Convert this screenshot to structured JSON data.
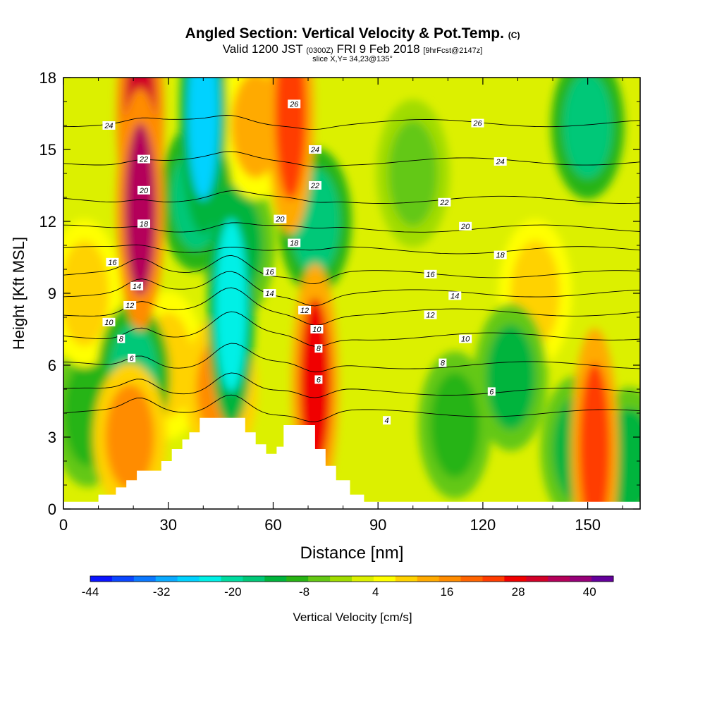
{
  "header": {
    "title": "Angled Section: Vertical Velocity & Pot.Temp.",
    "title_mark": "(C)",
    "valid_prefix": "Valid 1200 JST",
    "valid_utc": "(0300Z)",
    "valid_date": "FRI 9 Feb 2018",
    "forecast": "[9hrFcst@2147z]",
    "slice": "slice X,Y= 34,23@135°"
  },
  "chart_data": {
    "type": "heatmap",
    "subtype": "cross-section contour (filled vertical velocity, line potential temperature)",
    "xlabel": "Distance [nm]",
    "ylabel": "Height [Kft MSL]",
    "xlim": [
      0,
      165
    ],
    "ylim": [
      0,
      18
    ],
    "x_ticks": [
      0,
      30,
      60,
      90,
      120,
      150
    ],
    "y_ticks": [
      0,
      3,
      6,
      9,
      12,
      15,
      18
    ],
    "colorbar": {
      "label": "Vertical Velocity [cm/s]",
      "tick_labels": [
        "-44",
        "-32",
        "-20",
        "-8",
        "4",
        "16",
        "28",
        "40"
      ],
      "tick_values": [
        -44,
        -32,
        -20,
        -8,
        4,
        16,
        28,
        40
      ],
      "range": [
        -44,
        44
      ],
      "colors": [
        "#0a14ff",
        "#0a46ff",
        "#0a78ff",
        "#0aaaff",
        "#00d2ff",
        "#00f0e6",
        "#00dca0",
        "#00c878",
        "#00b43c",
        "#28b414",
        "#64c814",
        "#a0dc00",
        "#dcf000",
        "#ffff00",
        "#ffd200",
        "#ffaa00",
        "#ff8c00",
        "#ff6400",
        "#ff3c00",
        "#f00000",
        "#d20028",
        "#b4005a",
        "#960078",
        "#64009b"
      ]
    },
    "velocity_features": [
      {
        "x": 22,
        "y": 12.5,
        "value": 36
      },
      {
        "x": 22,
        "y": 16.5,
        "value": 30
      },
      {
        "x": 40,
        "y": 16.5,
        "value": -28
      },
      {
        "x": 38,
        "y": 13,
        "value": -18
      },
      {
        "x": 48,
        "y": 8.5,
        "value": -24
      },
      {
        "x": 50,
        "y": 11,
        "value": -12
      },
      {
        "x": 55,
        "y": 16,
        "value": 14
      },
      {
        "x": 65,
        "y": 16.5,
        "value": 24
      },
      {
        "x": 72,
        "y": 12,
        "value": -16
      },
      {
        "x": 72,
        "y": 5.2,
        "value": 26
      },
      {
        "x": 20,
        "y": 5.5,
        "value": -18
      },
      {
        "x": 19,
        "y": 3,
        "value": 18
      },
      {
        "x": 45,
        "y": 5,
        "value": 16
      },
      {
        "x": 150,
        "y": 16,
        "value": -16
      },
      {
        "x": 152,
        "y": 2.5,
        "value": 22
      },
      {
        "x": 147,
        "y": 2.5,
        "value": -14
      },
      {
        "x": 162,
        "y": 2,
        "value": -14
      },
      {
        "x": 128,
        "y": 5.5,
        "value": -12
      },
      {
        "x": 112,
        "y": 3.5,
        "value": -10
      },
      {
        "x": 135,
        "y": 9,
        "value": 9
      },
      {
        "x": 6,
        "y": 9,
        "value": 10
      },
      {
        "x": 7,
        "y": 4,
        "value": -8
      },
      {
        "x": 30,
        "y": 6,
        "value": 8
      },
      {
        "x": 100,
        "y": 14,
        "value": -6
      }
    ],
    "theta_contours": [
      {
        "value": 4,
        "label": "4",
        "x": 90,
        "y": 4.0
      },
      {
        "value": 6,
        "label": "6",
        "x": 120,
        "y": 4.9
      },
      {
        "value": 8,
        "label": "8",
        "x": 120,
        "y": 6.0
      },
      {
        "value": 10,
        "label": "10",
        "x": 120,
        "y": 7.2
      },
      {
        "value": 12,
        "label": "12",
        "x": 120,
        "y": 8.2
      },
      {
        "value": 14,
        "label": "14",
        "x": 120,
        "y": 9.0
      },
      {
        "value": 16,
        "label": "16",
        "x": 120,
        "y": 9.8
      },
      {
        "value": 18,
        "label": "18",
        "x": 120,
        "y": 10.8
      },
      {
        "value": 20,
        "label": "20",
        "x": 120,
        "y": 11.7
      },
      {
        "value": 22,
        "label": "22",
        "x": 120,
        "y": 12.9
      },
      {
        "value": 24,
        "label": "24",
        "x": 120,
        "y": 14.5
      },
      {
        "value": 26,
        "label": "26",
        "x": 120,
        "y": 16.1
      }
    ],
    "contour_label_marks": [
      {
        "text": "24",
        "x": 13,
        "y": 16.0
      },
      {
        "text": "22",
        "x": 23,
        "y": 14.6
      },
      {
        "text": "20",
        "x": 23,
        "y": 13.3
      },
      {
        "text": "18",
        "x": 23,
        "y": 11.9
      },
      {
        "text": "16",
        "x": 14,
        "y": 10.3
      },
      {
        "text": "14",
        "x": 21,
        "y": 9.3
      },
      {
        "text": "12",
        "x": 19,
        "y": 8.5
      },
      {
        "text": "10",
        "x": 13,
        "y": 7.8
      },
      {
        "text": "8",
        "x": 16.5,
        "y": 7.1
      },
      {
        "text": "6",
        "x": 19.5,
        "y": 6.3
      },
      {
        "text": "26",
        "x": 66,
        "y": 16.9
      },
      {
        "text": "24",
        "x": 72,
        "y": 15.0
      },
      {
        "text": "22",
        "x": 72,
        "y": 13.5
      },
      {
        "text": "20",
        "x": 62,
        "y": 12.1
      },
      {
        "text": "18",
        "x": 66,
        "y": 11.1
      },
      {
        "text": "16",
        "x": 59,
        "y": 9.9
      },
      {
        "text": "14",
        "x": 59,
        "y": 9.0
      },
      {
        "text": "12",
        "x": 69,
        "y": 8.3
      },
      {
        "text": "10",
        "x": 72.5,
        "y": 7.5
      },
      {
        "text": "8",
        "x": 73,
        "y": 6.7
      },
      {
        "text": "6",
        "x": 73,
        "y": 5.4
      },
      {
        "text": "4",
        "x": 92.5,
        "y": 3.7
      },
      {
        "text": "26",
        "x": 118.5,
        "y": 16.1
      },
      {
        "text": "24",
        "x": 125,
        "y": 14.5
      },
      {
        "text": "22",
        "x": 109,
        "y": 12.8
      },
      {
        "text": "20",
        "x": 115,
        "y": 11.8
      },
      {
        "text": "18",
        "x": 125,
        "y": 10.6
      },
      {
        "text": "16",
        "x": 105,
        "y": 9.8
      },
      {
        "text": "14",
        "x": 112,
        "y": 8.9
      },
      {
        "text": "12",
        "x": 105,
        "y": 8.1
      },
      {
        "text": "10",
        "x": 115,
        "y": 7.1
      },
      {
        "text": "8",
        "x": 108.5,
        "y": 6.1
      },
      {
        "text": "6",
        "x": 122.5,
        "y": 4.9
      }
    ],
    "terrain": {
      "x": [
        0,
        10,
        10,
        15,
        15,
        18,
        18,
        21,
        21,
        28,
        28,
        31,
        31,
        34,
        34,
        36,
        36,
        39,
        39,
        43,
        43,
        52,
        52,
        55,
        55,
        58,
        58,
        61,
        61,
        63,
        63,
        66,
        66,
        72,
        72,
        75,
        75,
        78,
        78,
        82,
        82,
        86,
        86,
        165
      ],
      "y": [
        0.3,
        0.3,
        0.6,
        0.6,
        0.9,
        0.9,
        1.2,
        1.2,
        1.6,
        1.6,
        2.0,
        2.0,
        2.5,
        2.5,
        2.9,
        2.9,
        3.2,
        3.2,
        3.8,
        3.8,
        3.8,
        3.8,
        3.2,
        3.2,
        2.7,
        2.7,
        2.3,
        2.3,
        2.6,
        2.6,
        3.5,
        3.5,
        3.5,
        3.5,
        2.5,
        2.5,
        1.8,
        1.8,
        1.2,
        1.2,
        0.6,
        0.6,
        0.3,
        0.3
      ]
    },
    "grid": false,
    "legend": "colorbar-bottom"
  }
}
